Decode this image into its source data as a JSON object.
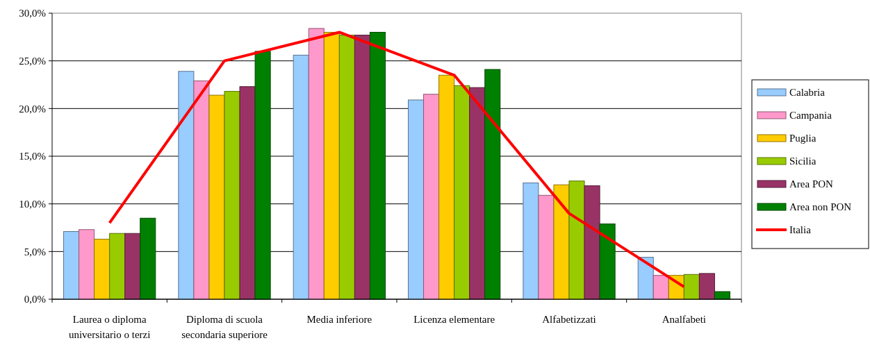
{
  "chart_data": {
    "type": "bar",
    "categories": [
      "Laurea o diploma universitario o terzi",
      "Diploma di scuola secondaria superiore",
      "Media inferiore",
      "Licenza elementare",
      "Alfabetizzati",
      "Analfabeti"
    ],
    "series": [
      {
        "name": "Calabria",
        "color": "#99ccff",
        "values": [
          7.1,
          23.9,
          25.6,
          20.9,
          12.2,
          4.4
        ]
      },
      {
        "name": "Campania",
        "color": "#ff99cc",
        "values": [
          7.3,
          22.9,
          28.4,
          21.5,
          10.9,
          2.5
        ]
      },
      {
        "name": "Puglia",
        "color": "#ffcc00",
        "values": [
          6.3,
          21.4,
          28.0,
          23.5,
          12.0,
          2.5
        ]
      },
      {
        "name": "Sicilia",
        "color": "#99cc00",
        "values": [
          6.9,
          21.8,
          27.7,
          22.4,
          12.4,
          2.6
        ]
      },
      {
        "name": "Area PON",
        "color": "#993366",
        "values": [
          6.9,
          22.3,
          27.7,
          22.2,
          11.9,
          2.7
        ]
      },
      {
        "name": "Area non PON",
        "color": "#008000",
        "values": [
          8.5,
          26.0,
          28.0,
          24.1,
          7.9,
          0.8
        ]
      },
      {
        "name": "Italia",
        "type": "line",
        "color": "#ff0000",
        "values": [
          8.0,
          25.0,
          28.0,
          23.5,
          9.0,
          1.3
        ]
      }
    ],
    "ylim": [
      0,
      30
    ],
    "yticks": [
      {
        "value": 0,
        "label": "0,0%"
      },
      {
        "value": 5,
        "label": "5,0%"
      },
      {
        "value": 10,
        "label": "10,0%"
      },
      {
        "value": 15,
        "label": "15,0%"
      },
      {
        "value": 20,
        "label": "20,0%"
      },
      {
        "value": 25,
        "label": "25,0%"
      },
      {
        "value": 30,
        "label": "30,0%"
      }
    ],
    "grid": "y",
    "legend": "right",
    "marker": "none",
    "line_style": "solid"
  }
}
